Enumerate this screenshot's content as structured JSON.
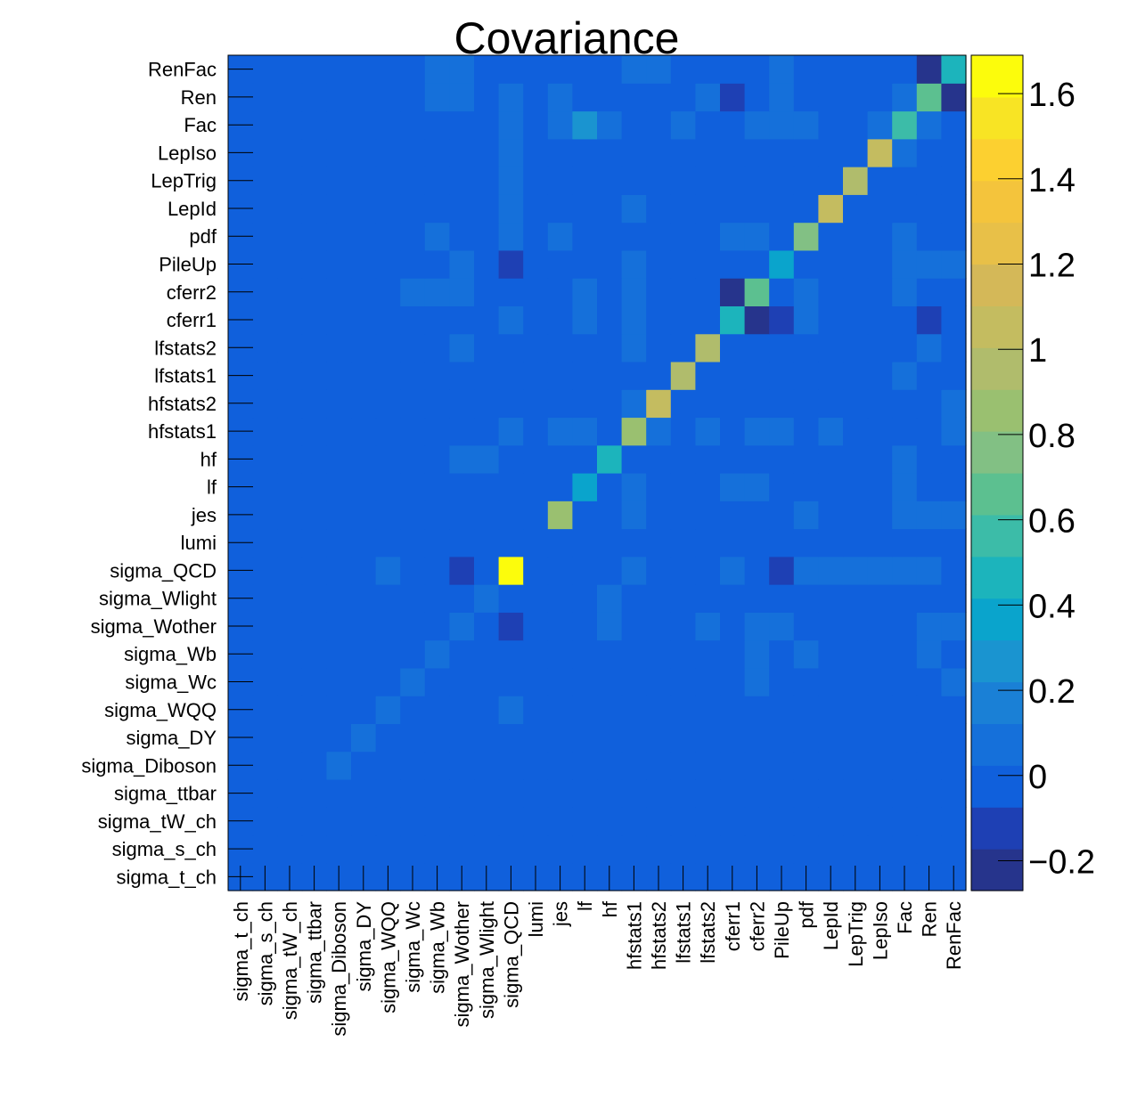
{
  "chart_data": {
    "type": "heatmap",
    "title": "Covariance",
    "xlabel": "",
    "ylabel": "",
    "labels": [
      "sigma_t_ch",
      "sigma_s_ch",
      "sigma_tW_ch",
      "sigma_ttbar",
      "sigma_Diboson",
      "sigma_DY",
      "sigma_WQQ",
      "sigma_Wc",
      "sigma_Wb",
      "sigma_Wother",
      "sigma_Wlight",
      "sigma_QCD",
      "lumi",
      "jes",
      "lf",
      "hf",
      "hfstats1",
      "hfstats2",
      "lfstats1",
      "lfstats2",
      "cferr1",
      "cferr2",
      "PileUp",
      "pdf",
      "LepId",
      "LepTrig",
      "LepIso",
      "Fac",
      "Ren",
      "RenFac"
    ],
    "zlim": [
      -0.27,
      1.69
    ],
    "zticks": [
      -0.2,
      0,
      0.2,
      0.4,
      0.6,
      0.8,
      1,
      1.2,
      1.4,
      1.6
    ],
    "ztick_labels": [
      "−0.2",
      "0",
      "0.2",
      "0.4",
      "0.6",
      "0.8",
      "1",
      "1.2",
      "1.4",
      "1.6"
    ],
    "colorscale": [
      "#26348c",
      "#1e40b4",
      "#1060dc",
      "#1570da",
      "#1a80d6",
      "#1a94d0",
      "#0aa4cc",
      "#1cb4bc",
      "#3cbca8",
      "#5cc090",
      "#82c084",
      "#9ac070",
      "#b0bc6c",
      "#c4bc60",
      "#d4b858",
      "#e8c048",
      "#f4c43c",
      "#fcd030",
      "#f8e424",
      "#fcfc0c"
    ],
    "cells": [
      [
        "sigma_Diboson",
        "sigma_Diboson",
        0.06
      ],
      [
        "sigma_DY",
        "sigma_DY",
        0.06
      ],
      [
        "sigma_WQQ",
        "sigma_WQQ",
        0.08
      ],
      [
        "sigma_WQQ",
        "sigma_QCD",
        0.06
      ],
      [
        "sigma_Wc",
        "sigma_Wc",
        0.08
      ],
      [
        "sigma_Wc",
        "cferr2",
        0.12
      ],
      [
        "sigma_Wc",
        "RenFac",
        0.05
      ],
      [
        "sigma_Wb",
        "sigma_Wb",
        0.08
      ],
      [
        "sigma_Wb",
        "cferr2",
        0.12
      ],
      [
        "sigma_Wb",
        "pdf",
        0.1
      ],
      [
        "sigma_Wb",
        "Ren",
        0.1
      ],
      [
        "sigma_Wother",
        "sigma_Wother",
        0.08
      ],
      [
        "sigma_Wother",
        "sigma_QCD",
        -0.08
      ],
      [
        "sigma_Wother",
        "hf",
        0.06
      ],
      [
        "sigma_Wother",
        "lfstats2",
        0.08
      ],
      [
        "sigma_Wother",
        "cferr2",
        0.12
      ],
      [
        "sigma_Wother",
        "PileUp",
        0.12
      ],
      [
        "sigma_Wother",
        "Ren",
        0.1
      ],
      [
        "sigma_Wother",
        "RenFac",
        0.1
      ],
      [
        "sigma_Wlight",
        "sigma_Wlight",
        0.08
      ],
      [
        "sigma_Wlight",
        "hf",
        0.06
      ],
      [
        "sigma_QCD",
        "sigma_QCD",
        1.69
      ],
      [
        "sigma_QCD",
        "sigma_WQQ",
        0.06
      ],
      [
        "sigma_QCD",
        "sigma_Wother",
        -0.08
      ],
      [
        "sigma_QCD",
        "hfstats1",
        0.06
      ],
      [
        "sigma_QCD",
        "cferr1",
        0.06
      ],
      [
        "sigma_QCD",
        "PileUp",
        -0.08
      ],
      [
        "sigma_QCD",
        "pdf",
        0.1
      ],
      [
        "sigma_QCD",
        "LepId",
        0.1
      ],
      [
        "sigma_QCD",
        "LepTrig",
        0.1
      ],
      [
        "sigma_QCD",
        "LepIso",
        0.1
      ],
      [
        "sigma_QCD",
        "Fac",
        0.1
      ],
      [
        "sigma_QCD",
        "Ren",
        0.1
      ],
      [
        "jes",
        "jes",
        0.82
      ],
      [
        "jes",
        "lf",
        -0.06
      ],
      [
        "jes",
        "hfstats1",
        0.06
      ],
      [
        "jes",
        "pdf",
        0.06
      ],
      [
        "jes",
        "Fac",
        0.1
      ],
      [
        "jes",
        "Ren",
        0.1
      ],
      [
        "jes",
        "RenFac",
        0.1
      ],
      [
        "lf",
        "lf",
        0.4
      ],
      [
        "lf",
        "jes",
        -0.06
      ],
      [
        "lf",
        "hfstats1",
        0.06
      ],
      [
        "lf",
        "cferr1",
        0.08
      ],
      [
        "lf",
        "cferr2",
        0.08
      ],
      [
        "lf",
        "Fac",
        0.12
      ],
      [
        "lf",
        "RenFac",
        -0.06
      ],
      [
        "hf",
        "hf",
        0.5
      ],
      [
        "hf",
        "sigma_Wother",
        0.08
      ],
      [
        "hf",
        "sigma_Wlight",
        0.08
      ],
      [
        "hf",
        "lfstats1",
        -0.06
      ],
      [
        "hf",
        "lfstats2",
        -0.06
      ],
      [
        "hf",
        "Fac",
        0.08
      ],
      [
        "hfstats1",
        "hfstats1",
        0.9
      ],
      [
        "hfstats1",
        "sigma_QCD",
        0.06
      ],
      [
        "hfstats1",
        "jes",
        0.1
      ],
      [
        "hfstats1",
        "lf",
        0.1
      ],
      [
        "hfstats1",
        "hfstats2",
        0.06
      ],
      [
        "hfstats1",
        "lfstats2",
        0.06
      ],
      [
        "hfstats1",
        "cferr2",
        0.1
      ],
      [
        "hfstats1",
        "PileUp",
        0.1
      ],
      [
        "hfstats1",
        "LepId",
        0.08
      ],
      [
        "hfstats1",
        "RenFac",
        0.06
      ],
      [
        "hfstats2",
        "hfstats2",
        1.05
      ],
      [
        "hfstats2",
        "hfstats1",
        0.06
      ],
      [
        "hfstats2",
        "RenFac",
        0.06
      ],
      [
        "lfstats1",
        "lfstats1",
        0.98
      ],
      [
        "lfstats1",
        "hf",
        -0.06
      ],
      [
        "lfstats1",
        "Fac",
        0.06
      ],
      [
        "lfstats2",
        "lfstats2",
        0.98
      ],
      [
        "lfstats2",
        "sigma_Wother",
        0.06
      ],
      [
        "lfstats2",
        "hf",
        -0.06
      ],
      [
        "lfstats2",
        "hfstats1",
        0.08
      ],
      [
        "lfstats2",
        "Ren",
        0.06
      ],
      [
        "cferr1",
        "cferr1",
        0.45
      ],
      [
        "cferr1",
        "sigma_QCD",
        0.06
      ],
      [
        "cferr1",
        "lf",
        0.06
      ],
      [
        "cferr1",
        "hfstats1",
        0.06
      ],
      [
        "cferr1",
        "cferr2",
        -0.2
      ],
      [
        "cferr1",
        "PileUp",
        -0.08
      ],
      [
        "cferr1",
        "pdf",
        0.06
      ],
      [
        "cferr1",
        "Ren",
        -0.1
      ],
      [
        "cferr2",
        "cferr2",
        0.65
      ],
      [
        "cferr2",
        "sigma_Wc",
        0.1
      ],
      [
        "cferr2",
        "sigma_Wb",
        0.1
      ],
      [
        "cferr2",
        "sigma_Wother",
        0.1
      ],
      [
        "cferr2",
        "lf",
        0.08
      ],
      [
        "cferr2",
        "hfstats1",
        0.06
      ],
      [
        "cferr2",
        "cferr1",
        -0.2
      ],
      [
        "cferr2",
        "PileUp",
        -0.06
      ],
      [
        "cferr2",
        "pdf",
        0.06
      ],
      [
        "cferr2",
        "Fac",
        0.08
      ],
      [
        "PileUp",
        "PileUp",
        0.4
      ],
      [
        "PileUp",
        "sigma_Wother",
        0.06
      ],
      [
        "PileUp",
        "sigma_QCD",
        -0.1
      ],
      [
        "PileUp",
        "hfstats1",
        0.06
      ],
      [
        "PileUp",
        "cferr1",
        -0.06
      ],
      [
        "PileUp",
        "cferr2",
        -0.06
      ],
      [
        "PileUp",
        "pdf",
        -0.06
      ],
      [
        "PileUp",
        "Fac",
        0.1
      ],
      [
        "PileUp",
        "Ren",
        0.1
      ],
      [
        "PileUp",
        "RenFac",
        0.1
      ],
      [
        "pdf",
        "pdf",
        0.75
      ],
      [
        "pdf",
        "sigma_Wb",
        0.08
      ],
      [
        "pdf",
        "sigma_QCD",
        0.06
      ],
      [
        "pdf",
        "jes",
        0.06
      ],
      [
        "pdf",
        "cferr1",
        0.08
      ],
      [
        "pdf",
        "cferr2",
        0.08
      ],
      [
        "pdf",
        "PileUp",
        -0.06
      ],
      [
        "pdf",
        "Fac",
        0.08
      ],
      [
        "LepId",
        "LepId",
        1.05
      ],
      [
        "LepId",
        "sigma_QCD",
        0.06
      ],
      [
        "LepId",
        "hfstats1",
        0.06
      ],
      [
        "LepTrig",
        "LepTrig",
        0.95
      ],
      [
        "LepTrig",
        "sigma_QCD",
        0.06
      ],
      [
        "LepIso",
        "LepIso",
        1.1
      ],
      [
        "LepIso",
        "sigma_QCD",
        0.06
      ],
      [
        "LepIso",
        "Fac",
        0.06
      ],
      [
        "Fac",
        "Fac",
        0.6
      ],
      [
        "Fac",
        "sigma_QCD",
        0.06
      ],
      [
        "Fac",
        "jes",
        0.1
      ],
      [
        "Fac",
        "lf",
        0.25
      ],
      [
        "Fac",
        "hf",
        0.08
      ],
      [
        "Fac",
        "lfstats1",
        0.08
      ],
      [
        "Fac",
        "cferr2",
        0.12
      ],
      [
        "Fac",
        "PileUp",
        0.12
      ],
      [
        "Fac",
        "pdf",
        0.12
      ],
      [
        "Fac",
        "LepIso",
        0.08
      ],
      [
        "Fac",
        "Ren",
        0.12
      ],
      [
        "Ren",
        "Ren",
        0.65
      ],
      [
        "Ren",
        "sigma_Wb",
        0.12
      ],
      [
        "Ren",
        "sigma_Wother",
        0.12
      ],
      [
        "Ren",
        "sigma_QCD",
        0.08
      ],
      [
        "Ren",
        "jes",
        0.1
      ],
      [
        "Ren",
        "lfstats2",
        0.08
      ],
      [
        "Ren",
        "cferr1",
        -0.08
      ],
      [
        "Ren",
        "PileUp",
        0.1
      ],
      [
        "Ren",
        "Fac",
        0.12
      ],
      [
        "Ren",
        "RenFac",
        -0.2
      ],
      [
        "RenFac",
        "RenFac",
        0.45
      ],
      [
        "RenFac",
        "sigma_Wb",
        0.1
      ],
      [
        "RenFac",
        "sigma_Wother",
        0.1
      ],
      [
        "RenFac",
        "lf",
        -0.06
      ],
      [
        "RenFac",
        "hfstats1",
        0.12
      ],
      [
        "RenFac",
        "hfstats2",
        0.12
      ],
      [
        "RenFac",
        "PileUp",
        0.1
      ],
      [
        "RenFac",
        "Ren",
        -0.2
      ]
    ]
  }
}
